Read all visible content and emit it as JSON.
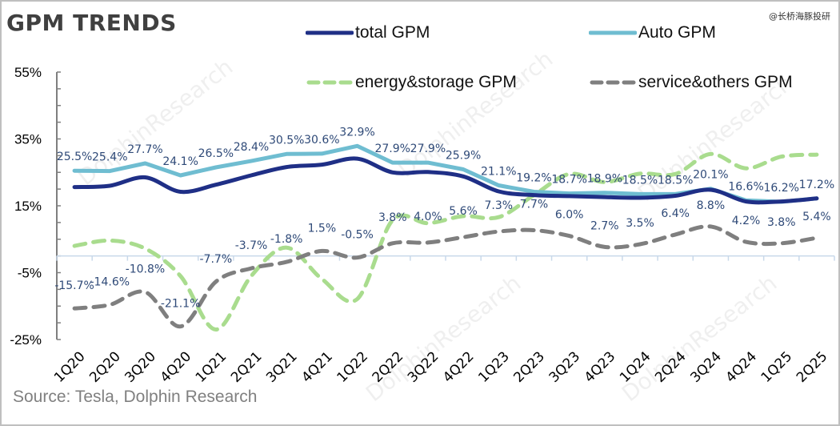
{
  "header": {
    "title": "GPM TRENDS",
    "credit": "@长桥海豚投研",
    "source": "Source: Tesla,  Dolphin Research"
  },
  "watermark": {
    "text": "DolphinResearch",
    "cn_text": "海豚投研"
  },
  "chart_data": {
    "type": "line",
    "title": "GPM TRENDS",
    "xlabel": "",
    "ylabel": "",
    "ylim": [
      -25,
      55
    ],
    "yticks": [
      55,
      35,
      15,
      -5,
      -25
    ],
    "ytick_labels": [
      "55%",
      "35%",
      "15%",
      "-5%",
      "-25%"
    ],
    "x_axis_crosses_at": 0,
    "grid": false,
    "legend_position": "top",
    "categories": [
      "1Q20",
      "2Q20",
      "3Q20",
      "4Q20",
      "1Q21",
      "2Q21",
      "3Q21",
      "4Q21",
      "1Q22",
      "2Q22",
      "3Q22",
      "4Q22",
      "1Q23",
      "2Q23",
      "3Q23",
      "4Q23",
      "1Q24",
      "2Q24",
      "3Q24",
      "4Q24",
      "1Q25",
      "2Q25"
    ],
    "series": [
      {
        "name": "total GPM",
        "style": "solid",
        "color": "#1f2f86",
        "labeled": false,
        "values": [
          20.6,
          21.0,
          23.5,
          19.2,
          21.3,
          24.1,
          26.6,
          27.3,
          29.1,
          25.0,
          25.1,
          23.8,
          19.3,
          18.2,
          17.9,
          17.6,
          17.4,
          18.0,
          19.8,
          16.3,
          16.3,
          17.2
        ]
      },
      {
        "name": "Auto GPM",
        "style": "solid",
        "color": "#6fbdd1",
        "labeled": true,
        "values": [
          25.5,
          25.4,
          27.7,
          24.1,
          26.5,
          28.4,
          30.5,
          30.6,
          32.9,
          27.9,
          27.9,
          25.9,
          21.1,
          19.2,
          18.7,
          18.9,
          18.5,
          18.5,
          20.1,
          16.6,
          16.2,
          17.2
        ]
      },
      {
        "name": "energy&storage GPM",
        "style": "dashed",
        "color": "#a9dc8e",
        "labeled": false,
        "values": [
          3.0,
          4.6,
          2.2,
          -6.0,
          -22.0,
          -6.0,
          2.5,
          -6.9,
          -12.9,
          10.7,
          9.8,
          11.9,
          11.6,
          18.2,
          24.5,
          22.1,
          24.6,
          24.5,
          30.5,
          26.2,
          29.7,
          30.3
        ]
      },
      {
        "name": "service&others GPM",
        "style": "dashed",
        "color": "#7f7f7f",
        "labeled": true,
        "values": [
          -15.7,
          -14.6,
          -10.8,
          -21.1,
          -7.7,
          -3.7,
          -1.8,
          1.5,
          -0.5,
          3.8,
          4.0,
          5.6,
          7.3,
          7.7,
          6.0,
          2.7,
          3.5,
          6.4,
          8.8,
          4.2,
          3.8,
          5.4
        ]
      }
    ],
    "data_labels": {
      "Auto GPM": [
        "25.5%",
        "25.4%",
        "27.7%",
        "24.1%",
        "26.5%",
        "28.4%",
        "30.5%",
        "30.6%",
        "32.9%",
        "27.9%",
        "27.9%",
        "25.9%",
        "21.1%",
        "19.2%",
        "18.7%",
        "18.9%",
        "18.5%",
        "18.5%",
        "20.1%",
        "16.6%",
        "16.2%",
        "17.2%"
      ],
      "service&others GPM": [
        "-15.7%",
        "-14.6%",
        "-10.8%",
        "-21.1%",
        "-7.7%",
        "-3.7%",
        "-1.8%",
        "1.5%",
        "-0.5%",
        "3.8%",
        "4.0%",
        "5.6%",
        "7.3%",
        "7.7%",
        "6.0%",
        "2.7%",
        "3.5%",
        "6.4%",
        "8.8%",
        "4.2%",
        "3.8%",
        "5.4%"
      ]
    }
  }
}
